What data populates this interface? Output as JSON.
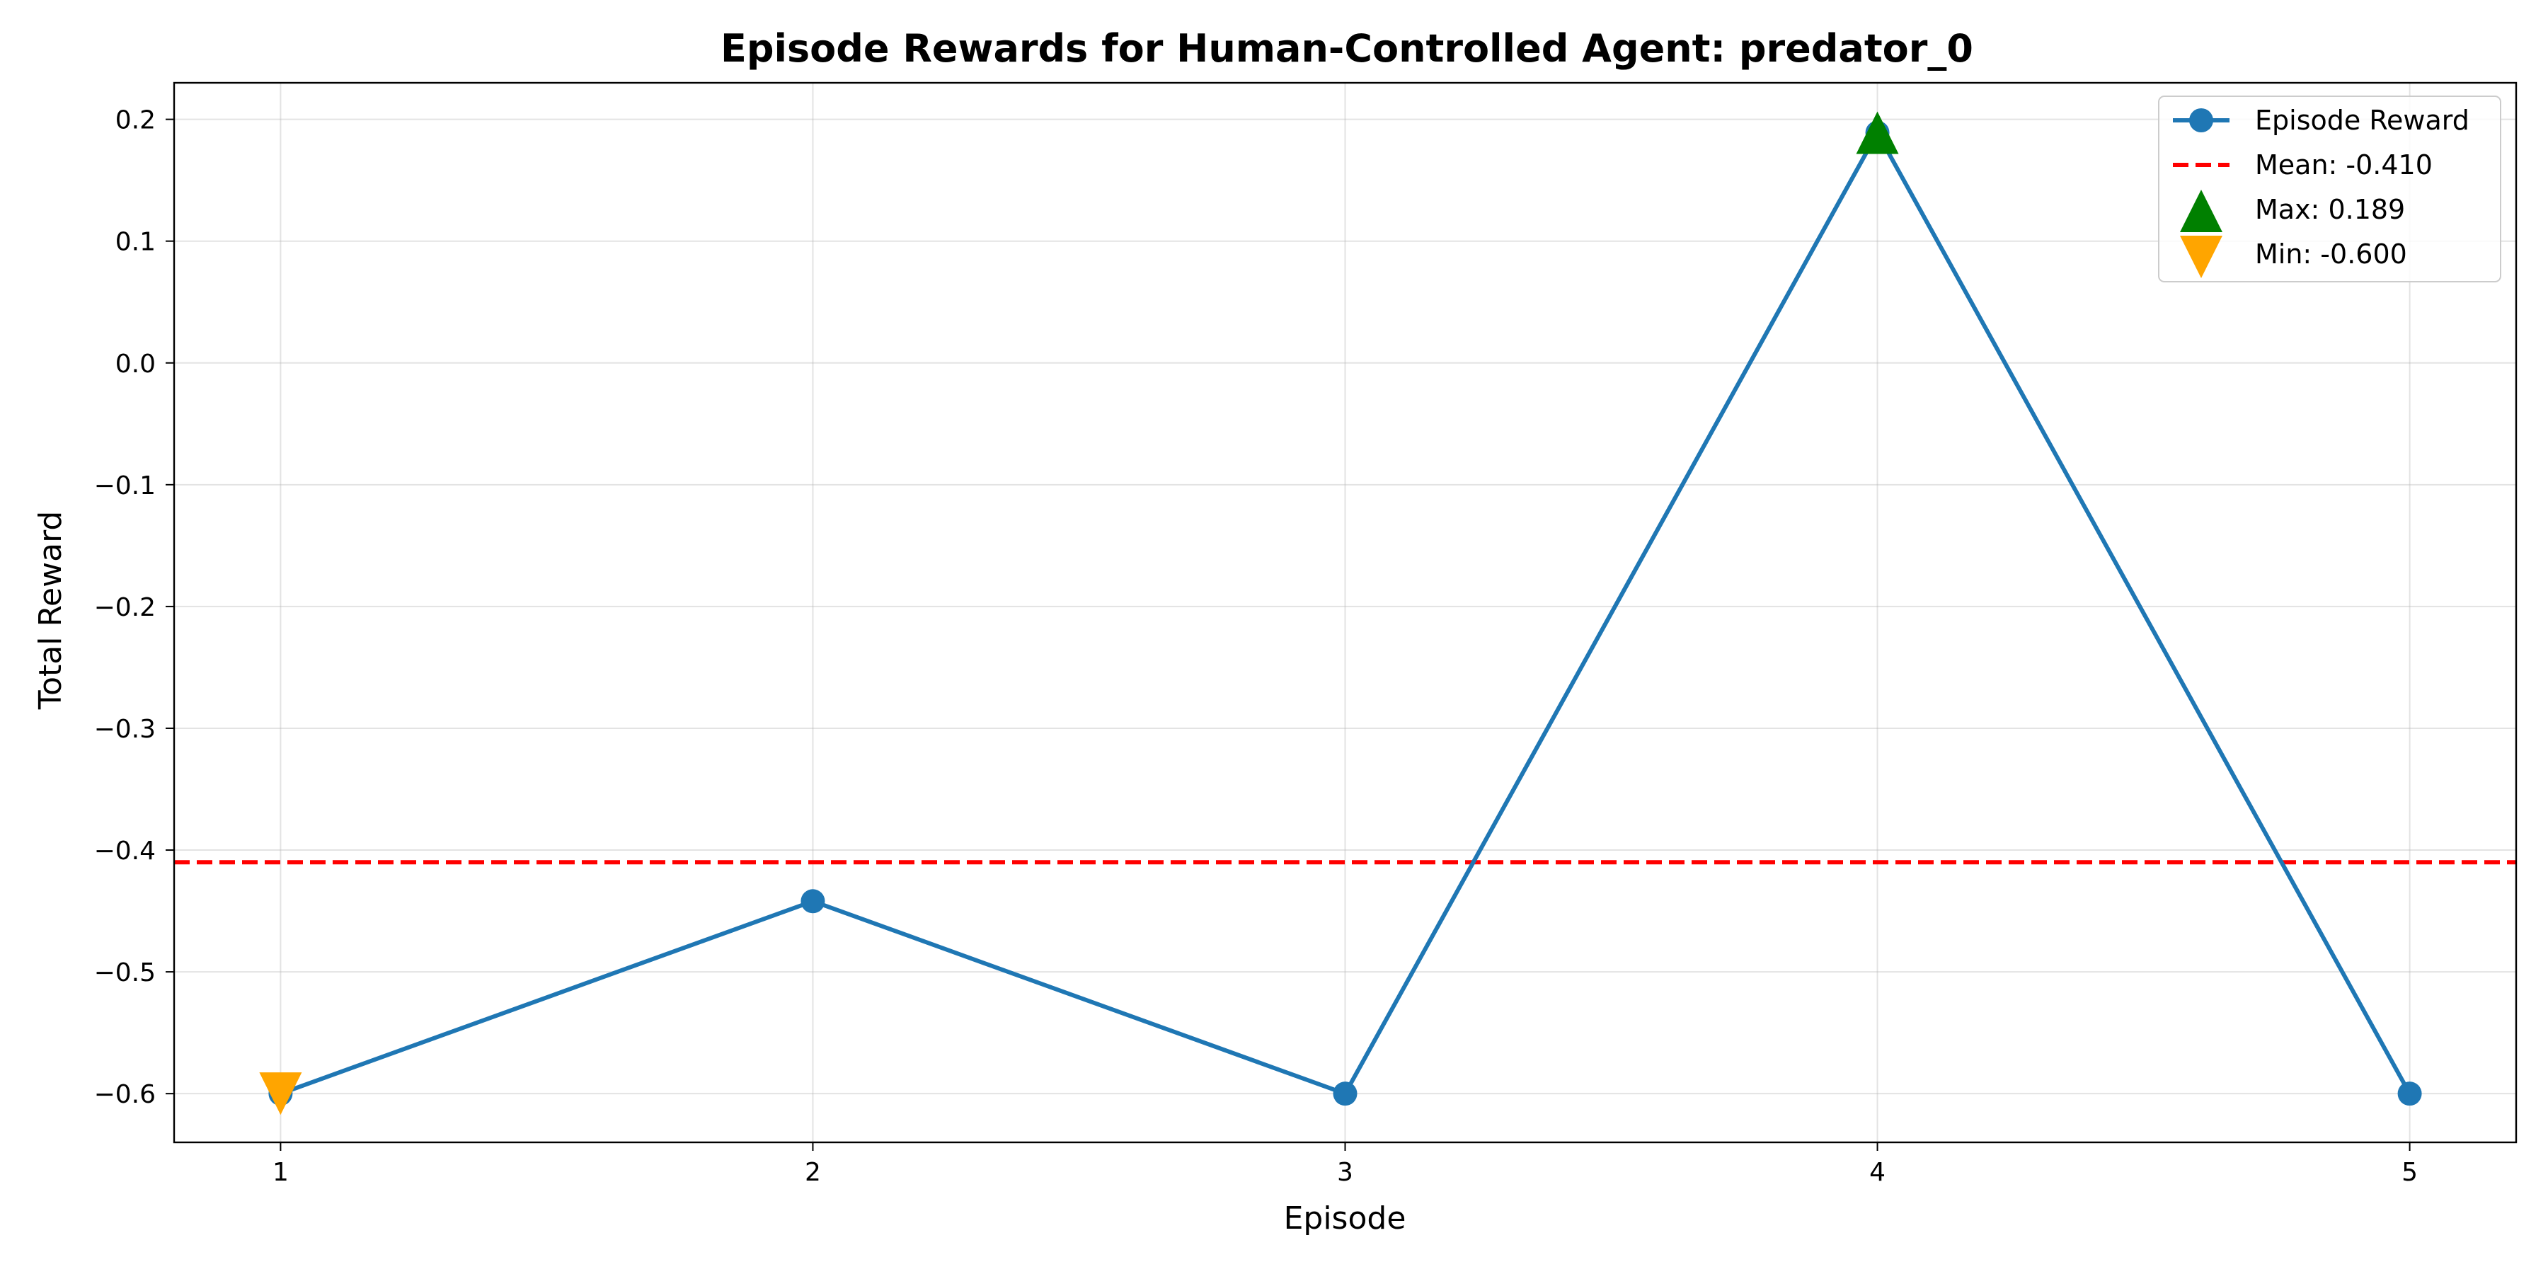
{
  "chart_data": {
    "type": "line",
    "title": "Episode Rewards for Human-Controlled Agent: predator_0",
    "xlabel": "Episode",
    "ylabel": "Total Reward",
    "xlim": [
      0.8,
      5.2
    ],
    "ylim": [
      -0.64,
      0.23
    ],
    "x_ticks": [
      1,
      2,
      3,
      4,
      5
    ],
    "y_ticks": [
      0.2,
      0.1,
      0.0,
      -0.1,
      -0.2,
      -0.3,
      -0.4,
      -0.5,
      -0.6
    ],
    "y_tick_labels": [
      "0.2",
      "0.1",
      "0.0",
      "−0.1",
      "−0.2",
      "−0.3",
      "−0.4",
      "−0.5",
      "−0.6"
    ],
    "grid": true,
    "legend_position": "top-right",
    "series": [
      {
        "name": "Episode Reward",
        "x": [
          1,
          2,
          3,
          4,
          5
        ],
        "y": [
          -0.6,
          -0.442,
          -0.6,
          0.189,
          -0.6
        ],
        "color": "#1f77b4",
        "marker": "circle"
      }
    ],
    "mean_line": {
      "label": "Mean: -0.410",
      "value": -0.41,
      "color": "#ff0000",
      "style": "dashed"
    },
    "max_marker": {
      "label": "Max: 0.189",
      "x": 4,
      "y": 0.189,
      "color": "#008000",
      "marker": "triangle-up"
    },
    "min_marker": {
      "label": "Min: -0.600",
      "x": 1,
      "y": -0.6,
      "color": "#ffa500",
      "marker": "triangle-down"
    }
  }
}
